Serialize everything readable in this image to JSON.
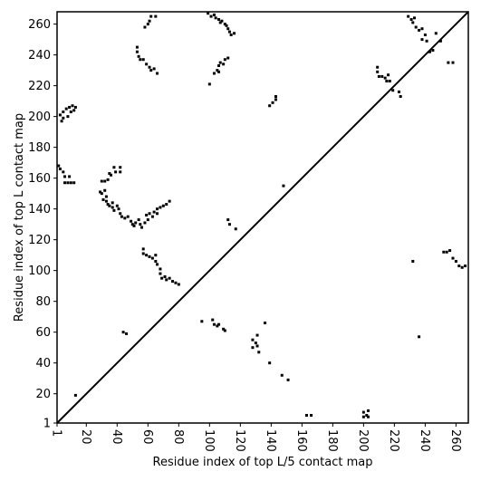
{
  "chart_data": {
    "type": "scatter",
    "xlabel": "Residue index of top L/5 contact map",
    "ylabel": "Residue index of top L contact map",
    "color": "#000000",
    "diagonal": true,
    "xlim": [
      1,
      268
    ],
    "ylim": [
      1,
      268
    ],
    "xticks": [
      1,
      20,
      40,
      60,
      80,
      100,
      120,
      140,
      160,
      180,
      200,
      220,
      240,
      260
    ],
    "yticks": [
      1,
      20,
      40,
      60,
      80,
      100,
      120,
      140,
      160,
      180,
      200,
      220,
      240,
      260
    ],
    "x": [
      3,
      4,
      5,
      5,
      7,
      8,
      9,
      10,
      11,
      12,
      13,
      2,
      3,
      5,
      6,
      6,
      8,
      9,
      10,
      12,
      38,
      39,
      42,
      42,
      35,
      30,
      32,
      34,
      36,
      29,
      30,
      32,
      33,
      31,
      33,
      34,
      35,
      37,
      37,
      38,
      40,
      41,
      42,
      43,
      45,
      47,
      49,
      50,
      51,
      52,
      54,
      55,
      56,
      58,
      60,
      59,
      61,
      63,
      64,
      66,
      66,
      68,
      70,
      72,
      74,
      57,
      57,
      59,
      61,
      63,
      65,
      65,
      66,
      68,
      68,
      69,
      71,
      72,
      74,
      76,
      78,
      80,
      58,
      60,
      61,
      62,
      65,
      53,
      53,
      54,
      55,
      57,
      59,
      61,
      62,
      64,
      66,
      99,
      101,
      103,
      104,
      106,
      107,
      108,
      110,
      111,
      112,
      113,
      114,
      116,
      100,
      103,
      105,
      106,
      107,
      109,
      110,
      112,
      106,
      139,
      141,
      143,
      143,
      112,
      113,
      117,
      148,
      209,
      209,
      210,
      212,
      214,
      215,
      216,
      217,
      219,
      223,
      224,
      229,
      231,
      232,
      233,
      234,
      236,
      238,
      238,
      240,
      241,
      243,
      245,
      247,
      250,
      255,
      258,
      232,
      236,
      252,
      254,
      256,
      258,
      260,
      262,
      264,
      266,
      13,
      44,
      46,
      95,
      102,
      103,
      105,
      106,
      109,
      110,
      128,
      128,
      130,
      131,
      131,
      132,
      136,
      139,
      147,
      151,
      163,
      166,
      200,
      200,
      202,
      203,
      203
    ],
    "values": [
      201,
      197,
      199,
      203,
      205,
      200,
      206,
      203,
      207,
      204,
      206,
      168,
      166,
      164,
      161,
      157,
      157,
      161,
      157,
      157,
      167,
      164,
      167,
      164,
      163,
      158,
      158,
      159,
      162,
      151,
      150,
      152,
      148,
      146,
      145,
      143,
      142,
      144,
      141,
      139,
      142,
      140,
      137,
      135,
      134,
      135,
      132,
      130,
      129,
      131,
      133,
      130,
      128,
      131,
      133,
      136,
      137,
      135,
      138,
      140,
      137,
      141,
      142,
      143,
      145,
      114,
      111,
      110,
      109,
      108,
      110,
      106,
      104,
      101,
      98,
      95,
      96,
      94,
      95,
      93,
      92,
      91,
      258,
      260,
      262,
      265,
      265,
      245,
      242,
      239,
      237,
      237,
      234,
      232,
      230,
      231,
      228,
      267,
      265,
      266,
      264,
      263,
      261,
      262,
      260,
      259,
      257,
      255,
      253,
      254,
      221,
      228,
      230,
      233,
      235,
      234,
      237,
      238,
      229,
      207,
      209,
      211,
      213,
      133,
      130,
      127,
      155,
      232,
      229,
      226,
      226,
      225,
      223,
      227,
      223,
      217,
      216,
      213,
      265,
      263,
      261,
      264,
      258,
      256,
      257,
      250,
      253,
      249,
      242,
      243,
      254,
      249,
      235,
      235,
      106,
      57,
      112,
      112,
      113,
      108,
      106,
      103,
      102,
      103,
      19,
      60,
      59,
      67,
      68,
      65,
      64,
      65,
      62,
      61,
      50,
      55,
      53,
      58,
      51,
      47,
      66,
      40,
      32,
      29,
      6,
      6,
      5,
      8,
      6,
      9,
      5
    ]
  }
}
